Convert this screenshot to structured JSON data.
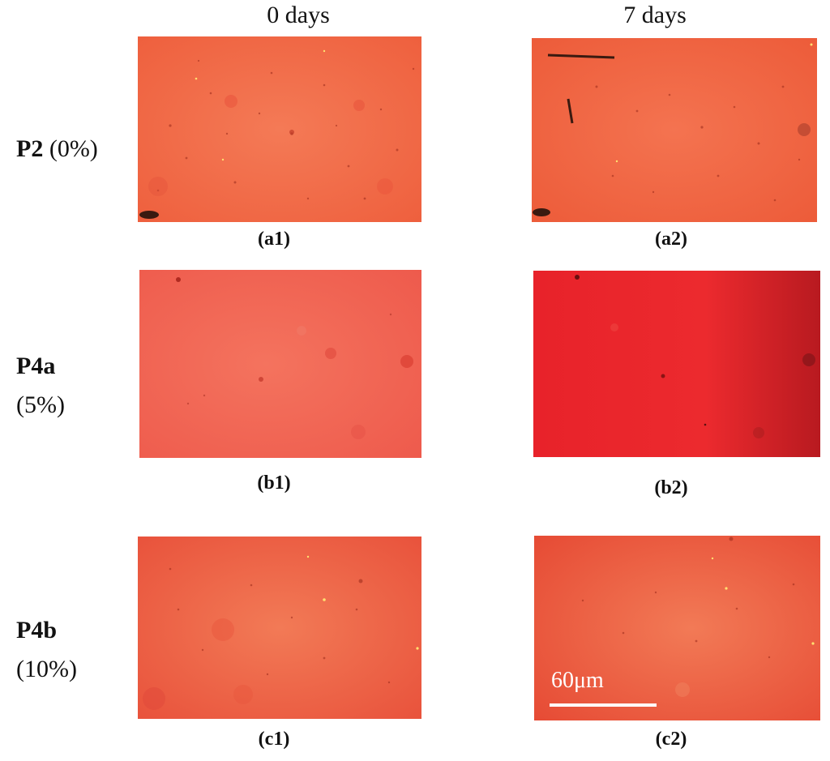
{
  "columns": [
    "0 days",
    "7 days"
  ],
  "rows": [
    {
      "name": "P2",
      "pct": "(0%)"
    },
    {
      "name": "P4a",
      "pct": "(5%)"
    },
    {
      "name": "P4b",
      "pct": "(10%)"
    }
  ],
  "captions": {
    "a1": "(a1)",
    "a2": "(a2)",
    "b1": "(b1)",
    "b2": "(b2)",
    "c1": "(c1)",
    "c2": "(c2)"
  },
  "scale_bar": {
    "label": "60μm"
  },
  "colors": {
    "p2_0": "#f26d4a",
    "p2_7": "#f2633f",
    "p4a_0": "#f05a4f",
    "p4a_7": "#e8232a",
    "p4b_0": "#ef5a3f",
    "p4b_7": "#ec5538"
  }
}
